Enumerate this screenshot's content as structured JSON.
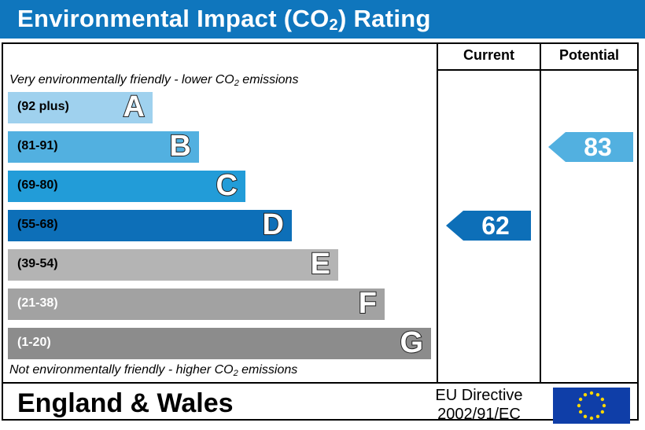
{
  "header": {
    "title_pre": "Environmental Impact (CO",
    "title_sub": "2",
    "title_post": ") Rating"
  },
  "columns": {
    "current": "Current",
    "potential": "Potential"
  },
  "notes": {
    "top_pre": "Very environmentally friendly - lower CO",
    "top_sub": "2",
    "top_post": " emissions",
    "bottom_pre": "Not environmentally friendly - higher CO",
    "bottom_sub": "2",
    "bottom_post": " emissions"
  },
  "footer": {
    "region": "England & Wales",
    "directive_line1": "EU Directive",
    "directive_line2": "2002/91/EC",
    "flag_icon": "eu-flag-icon"
  },
  "chart_data": {
    "type": "bar",
    "title": "Environmental Impact (CO2) Rating",
    "categories": [
      "A",
      "B",
      "C",
      "D",
      "E",
      "F",
      "G"
    ],
    "ranges": [
      "(92 plus)",
      "(81-91)",
      "(69-80)",
      "(55-68)",
      "(39-54)",
      "(21-38)",
      "(1-20)"
    ],
    "band_colors": [
      "#9fd1ee",
      "#52b0e0",
      "#229cd8",
      "#0d6fb8",
      "#b4b4b4",
      "#a2a2a2",
      "#8c8c8c"
    ],
    "range_text_colors": [
      "#000000",
      "#000000",
      "#000000",
      "#000000",
      "#000000",
      "#ffffff",
      "#ffffff"
    ],
    "values": [
      1,
      2,
      3,
      4,
      5,
      6,
      7
    ],
    "current": {
      "value": 62,
      "band": "D",
      "color": "#0d6fb8"
    },
    "potential": {
      "value": 83,
      "band": "B",
      "color": "#52b0e0"
    }
  }
}
